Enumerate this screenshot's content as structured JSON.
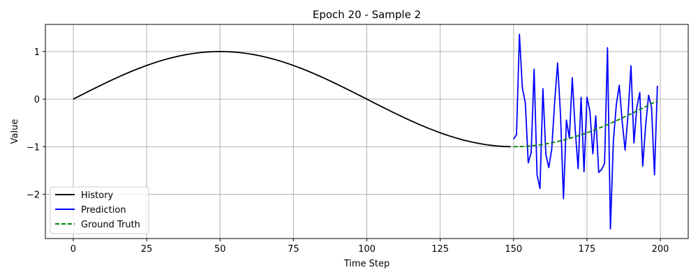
{
  "chart_data": {
    "type": "line",
    "title": "Epoch 20 - Sample 2",
    "xlabel": "Time Step",
    "ylabel": "Value",
    "xlim": [
      -9.5,
      209.5
    ],
    "ylim": [
      -2.93,
      1.57
    ],
    "xticks": [
      0,
      25,
      50,
      75,
      100,
      125,
      150,
      175,
      200
    ],
    "yticks": [
      1,
      0,
      -1,
      -2
    ],
    "ytick_labels": [
      "1",
      "0",
      "−1",
      "−2"
    ],
    "grid": true,
    "legend_position": "lower-left",
    "series": [
      {
        "name": "History",
        "color": "#000000",
        "style": "solid",
        "x_start": 0,
        "x_end": 149,
        "values": [
          0,
          0.0314,
          0.0628,
          0.0941,
          0.1253,
          0.1564,
          0.1874,
          0.2181,
          0.2487,
          0.279,
          0.309,
          0.3387,
          0.3681,
          0.3971,
          0.4258,
          0.454,
          0.4818,
          0.509,
          0.5358,
          0.5621,
          0.5878,
          0.6129,
          0.6374,
          0.6613,
          0.6845,
          0.7071,
          0.729,
          0.7501,
          0.7705,
          0.7902,
          0.809,
          0.8271,
          0.8443,
          0.8607,
          0.8763,
          0.891,
          0.9048,
          0.9178,
          0.9298,
          0.9409,
          0.9511,
          0.9603,
          0.9686,
          0.9759,
          0.9823,
          0.9877,
          0.9921,
          0.9956,
          0.998,
          0.9995,
          1.0,
          0.9995,
          0.998,
          0.9956,
          0.9921,
          0.9877,
          0.9823,
          0.9759,
          0.9686,
          0.9603,
          0.9511,
          0.9409,
          0.9298,
          0.9178,
          0.9048,
          0.891,
          0.8763,
          0.8607,
          0.8443,
          0.8271,
          0.809,
          0.7902,
          0.7705,
          0.7501,
          0.729,
          0.7071,
          0.6845,
          0.6613,
          0.6374,
          0.6129,
          0.5878,
          0.5621,
          0.5358,
          0.509,
          0.4818,
          0.454,
          0.4258,
          0.3971,
          0.3681,
          0.3387,
          0.309,
          0.279,
          0.2487,
          0.2181,
          0.1874,
          0.1564,
          0.1253,
          0.0941,
          0.0628,
          0.0314,
          0,
          -0.0314,
          -0.0628,
          -0.0941,
          -0.1253,
          -0.1564,
          -0.1874,
          -0.2181,
          -0.2487,
          -0.279,
          -0.309,
          -0.3387,
          -0.3681,
          -0.3971,
          -0.4258,
          -0.454,
          -0.4818,
          -0.509,
          -0.5358,
          -0.5621,
          -0.5878,
          -0.6129,
          -0.6374,
          -0.6613,
          -0.6845,
          -0.7071,
          -0.729,
          -0.7501,
          -0.7705,
          -0.7902,
          -0.809,
          -0.8271,
          -0.8443,
          -0.8607,
          -0.8763,
          -0.891,
          -0.9048,
          -0.9178,
          -0.9298,
          -0.9409,
          -0.9511,
          -0.9603,
          -0.9686,
          -0.9759,
          -0.9823,
          -0.9877,
          -0.9921,
          -0.9956,
          -0.998,
          -0.9995
        ]
      },
      {
        "name": "Prediction",
        "color": "#0000ff",
        "style": "solid",
        "x_start": 150,
        "x_end": 199,
        "values": [
          -0.84,
          -0.75,
          1.36,
          0.23,
          -0.07,
          -1.34,
          -1.12,
          0.63,
          -1.59,
          -1.88,
          0.22,
          -1.16,
          -1.44,
          -1.05,
          -0.06,
          0.76,
          -0.34,
          -2.09,
          -0.44,
          -0.82,
          0.45,
          -0.64,
          -1.46,
          0.04,
          -1.53,
          0.04,
          -0.25,
          -1.15,
          -0.35,
          -1.54,
          -1.48,
          -1.35,
          1.08,
          -2.73,
          -0.88,
          -0.12,
          0.29,
          -0.47,
          -1.07,
          -0.32,
          0.7,
          -0.92,
          -0.17,
          0.14,
          -1.41,
          -0.55,
          0.08,
          -0.17,
          -1.59,
          0.28
        ]
      },
      {
        "name": "Ground Truth",
        "color": "#008000",
        "style": "dashed",
        "x_start": 150,
        "x_end": 199,
        "values": [
          -1.0,
          -0.9995,
          -0.998,
          -0.9956,
          -0.9921,
          -0.9877,
          -0.9823,
          -0.9759,
          -0.9686,
          -0.9603,
          -0.9511,
          -0.9409,
          -0.9298,
          -0.9178,
          -0.9048,
          -0.891,
          -0.8763,
          -0.8607,
          -0.8443,
          -0.8271,
          -0.809,
          -0.7902,
          -0.7705,
          -0.7501,
          -0.729,
          -0.7071,
          -0.6845,
          -0.6613,
          -0.6374,
          -0.6129,
          -0.5878,
          -0.5621,
          -0.5358,
          -0.509,
          -0.4818,
          -0.454,
          -0.4258,
          -0.3971,
          -0.3681,
          -0.3387,
          -0.309,
          -0.279,
          -0.2487,
          -0.2181,
          -0.1874,
          -0.1564,
          -0.1253,
          -0.0941,
          -0.0628,
          -0.0314
        ]
      }
    ]
  }
}
